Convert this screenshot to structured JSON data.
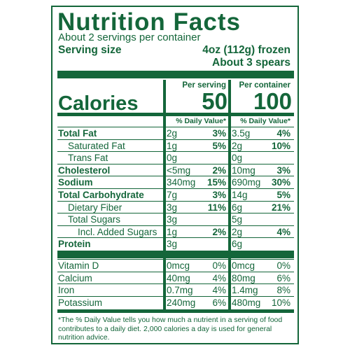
{
  "header": {
    "title": "Nutrition Facts",
    "servings_per_container": "About 2 servings per container",
    "serving_size_label": "Serving size",
    "serving_size_value": "4oz (112g) frozen",
    "serving_size_value2": "About 3 spears"
  },
  "calories": {
    "label": "Calories",
    "per_serving_label": "Per serving",
    "per_container_label": "Per container",
    "per_serving": 50,
    "per_container": 100,
    "dv_header": "% Daily Value*"
  },
  "nutrients": [
    [
      "Total Fat",
      "2g",
      "3%",
      "3.5g",
      "4%"
    ],
    [
      "Saturated Fat",
      "1g",
      "5%",
      "2g",
      "10%"
    ],
    [
      "Trans Fat",
      "0g",
      null,
      "0g",
      null
    ],
    [
      "Cholesterol",
      "<5mg",
      "2%",
      "10mg",
      "3%"
    ],
    [
      "Sodium",
      "340mg",
      "15%",
      "690mg",
      "30%"
    ],
    [
      "Total Carbohydrate",
      "7g",
      "3%",
      "14g",
      "5%"
    ],
    [
      "Dietary Fiber",
      "3g",
      "11%",
      "6g",
      "21%"
    ],
    [
      "Total Sugars",
      "3g",
      null,
      "5g",
      null
    ],
    [
      "Incl. Added Sugars",
      "1g",
      "2%",
      "2g",
      "4%"
    ],
    [
      "Protein",
      "3g",
      null,
      "6g",
      null
    ]
  ],
  "vitamins": [
    [
      "Vitamin D",
      "0mcg",
      "0%",
      "0mcg",
      "0%"
    ],
    [
      "Calcium",
      "40mg",
      "4%",
      "80mg",
      "6%"
    ],
    [
      "Iron",
      "0.7mg",
      "4%",
      "1.4mg",
      "8%"
    ],
    [
      "Potassium",
      "240mg",
      "6%",
      "480mg",
      "10%"
    ]
  ],
  "footnote": "*The % Daily Value tells you how much a nutrient in a serving of food contributes to a daily diet. 2,000 calories a day is used for general nutrition advice."
}
